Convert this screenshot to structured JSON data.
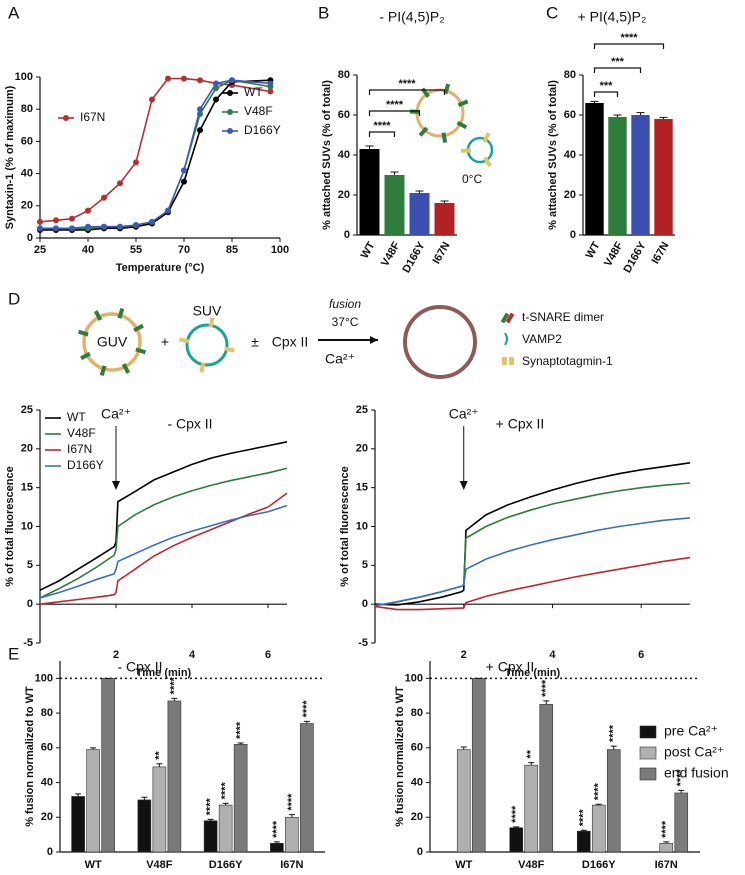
{
  "chart_data": [
    {
      "type": "line",
      "panel": "A",
      "xlabel": "Temperature (°C)",
      "ylabel": "Syntaxin-1 (% of maximum)",
      "x": [
        25,
        30,
        35,
        40,
        45,
        50,
        55,
        60,
        65,
        70,
        75,
        80,
        85,
        97
      ],
      "xlim": [
        25,
        100
      ],
      "xticks": [
        25,
        40,
        55,
        70,
        85,
        100
      ],
      "ylim": [
        0,
        100
      ],
      "yticks": [
        0,
        20,
        40,
        60,
        80,
        100
      ],
      "markers": true,
      "series": [
        {
          "name": "I67N",
          "color": "#b5302e",
          "values": [
            10,
            11,
            12,
            17,
            25,
            34,
            47,
            86,
            99,
            99,
            98,
            96,
            95,
            91
          ]
        },
        {
          "name": "WT",
          "color": "#000000",
          "values": [
            5,
            5,
            5,
            5,
            6,
            6,
            7,
            9,
            16,
            35,
            67,
            86,
            97,
            98
          ]
        },
        {
          "name": "V48F",
          "color": "#2e7d4f",
          "values": [
            6,
            6,
            6,
            6,
            7,
            7,
            8,
            10,
            17,
            42,
            77,
            93,
            98,
            94
          ]
        },
        {
          "name": "D166Y",
          "color": "#3b5bb5",
          "values": [
            6,
            6,
            6,
            7,
            7,
            7,
            8,
            10,
            17,
            42,
            80,
            96,
            98,
            96
          ]
        }
      ]
    },
    {
      "type": "bar",
      "panel": "B",
      "title": "- PI(4,5)P₂",
      "ylabel": "% attached SUVs (% of total)",
      "annotation": "0°C",
      "categories": [
        "WT",
        "V48F",
        "D166Y",
        "I67N"
      ],
      "values": [
        43,
        30,
        21,
        16
      ],
      "errors": [
        1.5,
        1.5,
        1,
        1
      ],
      "colors": [
        "#000000",
        "#2e7d3a",
        "#3a4fb0",
        "#b22222"
      ],
      "ylim": [
        0,
        80
      ],
      "yticks": [
        0,
        20,
        40,
        60,
        80
      ],
      "comparisons": [
        {
          "pair": [
            "WT",
            "V48F"
          ],
          "label": "****"
        },
        {
          "pair": [
            "WT",
            "D166Y"
          ],
          "label": "****"
        },
        {
          "pair": [
            "WT",
            "I67N"
          ],
          "label": "****"
        }
      ]
    },
    {
      "type": "bar",
      "panel": "C",
      "title": "+ PI(4,5)P₂",
      "ylabel": "% attached SUVs (% of total)",
      "categories": [
        "WT",
        "V48F",
        "D166Y",
        "I67N"
      ],
      "values": [
        66,
        59,
        60,
        58
      ],
      "errors": [
        0.8,
        1,
        1.2,
        0.8
      ],
      "colors": [
        "#000000",
        "#2e7d3a",
        "#3a4fb0",
        "#b22222"
      ],
      "ylim": [
        0,
        80
      ],
      "yticks": [
        0,
        20,
        40,
        60,
        80
      ],
      "comparisons": [
        {
          "pair": [
            "WT",
            "V48F"
          ],
          "label": "***"
        },
        {
          "pair": [
            "WT",
            "D166Y"
          ],
          "label": "***"
        },
        {
          "pair": [
            "WT",
            "I67N"
          ],
          "label": "****"
        }
      ]
    },
    {
      "type": "line",
      "title": "- Cpx II",
      "xlabel": "Time (min)",
      "ylabel": "% of total fluorescence",
      "annotation": {
        "text": "Ca²⁺",
        "x": 2
      },
      "x": [
        0,
        0.5,
        1,
        1.5,
        1.95,
        2,
        2.05,
        2.5,
        3,
        3.5,
        4,
        4.5,
        5,
        5.5,
        6,
        6.5
      ],
      "xlim": [
        0,
        6.5
      ],
      "xticks": [
        2,
        4,
        6
      ],
      "ylim": [
        -5,
        25
      ],
      "yticks": [
        -5,
        0,
        5,
        10,
        15,
        20,
        25
      ],
      "series": [
        {
          "name": "WT",
          "color": "#000000",
          "values": [
            1.8,
            3,
            4.5,
            6,
            7.4,
            8,
            13.2,
            14.5,
            16,
            17,
            18,
            18.8,
            19.4,
            19.9,
            20.4,
            20.9
          ]
        },
        {
          "name": "V48F",
          "color": "#2e7d3a",
          "values": [
            0.8,
            2,
            3.3,
            4.8,
            6.3,
            7,
            10,
            11.5,
            12.8,
            13.8,
            14.6,
            15.3,
            15.9,
            16.4,
            16.9,
            17.5
          ]
        },
        {
          "name": "I67N",
          "color": "#c0272d",
          "values": [
            0,
            0.3,
            0.6,
            0.9,
            1.2,
            1.5,
            3,
            4.5,
            6.2,
            7.5,
            8.6,
            9.6,
            10.6,
            11.6,
            12.5,
            14.3
          ]
        },
        {
          "name": "D166Y",
          "color": "#3a6fc0",
          "values": [
            0.8,
            1.5,
            2.3,
            3.2,
            3.9,
            4.5,
            5.5,
            6.5,
            7.6,
            8.6,
            9.4,
            10.1,
            10.8,
            11.4,
            11.9,
            12.7
          ]
        }
      ]
    },
    {
      "type": "line",
      "title": "+ Cpx II",
      "xlabel": "Time (min)",
      "ylabel": "% of total fluorescence",
      "annotation": {
        "text": "Ca²⁺",
        "x": 2
      },
      "x": [
        0,
        0.5,
        1,
        1.5,
        1.95,
        2,
        2.05,
        2.5,
        3,
        3.5,
        4,
        4.5,
        5,
        5.5,
        6,
        6.5,
        7.1
      ],
      "xlim": [
        0,
        7.1
      ],
      "xticks": [
        2,
        4,
        6
      ],
      "ylim": [
        -5,
        25
      ],
      "yticks": [
        -5,
        0,
        5,
        10,
        15,
        20,
        25
      ],
      "series": [
        {
          "color": "#000000",
          "values": [
            0,
            -0.1,
            0.3,
            0.9,
            1.6,
            1.8,
            9.5,
            11.5,
            12.8,
            13.8,
            14.7,
            15.5,
            16.2,
            16.8,
            17.3,
            17.7,
            18.2
          ]
        },
        {
          "color": "#2e7d3a",
          "values": [
            -0.2,
            0.3,
            0.9,
            1.6,
            2.3,
            2.5,
            8.5,
            10,
            11.2,
            12.1,
            12.9,
            13.5,
            14.1,
            14.6,
            15,
            15.3,
            15.6
          ]
        },
        {
          "color": "#3a6fc0",
          "values": [
            -0.2,
            0.3,
            0.9,
            1.6,
            2.3,
            2.5,
            4.5,
            5.8,
            6.8,
            7.6,
            8.3,
            8.9,
            9.5,
            10,
            10.4,
            10.8,
            11.1
          ]
        },
        {
          "color": "#c0272d",
          "values": [
            -0.3,
            -0.7,
            -0.7,
            -0.6,
            -0.5,
            -0.5,
            0.2,
            1,
            1.7,
            2.3,
            2.9,
            3.5,
            4,
            4.5,
            5,
            5.5,
            6
          ]
        }
      ]
    },
    {
      "type": "grouped_bar",
      "panel": "E",
      "title": "- Cpx II",
      "ylabel": "% fusion normalized to WT",
      "categories": [
        "WT",
        "V48F",
        "D166Y",
        "I67N"
      ],
      "ylim": [
        0,
        110
      ],
      "yticks": [
        0,
        20,
        40,
        60,
        80,
        100
      ],
      "reference_line": 100,
      "series": [
        {
          "color": "#111111",
          "values": [
            32,
            30,
            18,
            5
          ],
          "errors": [
            1.5,
            1.5,
            0.8,
            0.8
          ],
          "significance": [
            null,
            null,
            "****",
            "****"
          ]
        },
        {
          "color": "#b0b0b0",
          "values": [
            59,
            49,
            27,
            20
          ],
          "errors": [
            1,
            1.8,
            1,
            1.5
          ],
          "significance": [
            null,
            "**",
            "****",
            "****"
          ]
        },
        {
          "color": "#7a7a7a",
          "values": [
            100,
            87,
            62,
            74
          ],
          "errors": [
            0,
            1.5,
            0.8,
            1.2
          ],
          "significance": [
            null,
            "****",
            "****",
            "****"
          ]
        }
      ]
    },
    {
      "type": "grouped_bar",
      "title": "+ Cpx II",
      "ylabel": "% fusion normalized to WT",
      "categories": [
        "WT",
        "V48F",
        "D166Y",
        "I67N"
      ],
      "ylim": [
        0,
        110
      ],
      "yticks": [
        0,
        20,
        40,
        60,
        80,
        100
      ],
      "reference_line": 100,
      "series": [
        {
          "name": "pre Ca²⁺",
          "color": "#111111",
          "values": [
            0,
            14,
            12,
            0
          ],
          "errors": [
            0,
            0.5,
            0.5,
            0
          ],
          "significance": [
            null,
            "****",
            "****",
            null
          ]
        },
        {
          "name": "post Ca²⁺",
          "color": "#b0b0b0",
          "values": [
            59,
            50,
            27,
            5
          ],
          "errors": [
            1.5,
            1.5,
            0.5,
            0.8
          ],
          "significance": [
            null,
            "**",
            "****",
            "****"
          ]
        },
        {
          "name": "end fusion",
          "color": "#7a7a7a",
          "values": [
            100,
            85,
            59,
            34
          ],
          "errors": [
            0,
            2,
            2,
            1.5
          ],
          "significance": [
            null,
            "****",
            "****",
            "****"
          ]
        }
      ]
    }
  ],
  "diagram": {
    "panel": "D",
    "guv": "GUV",
    "suv": "SUV",
    "plus": "+",
    "plus_minus": "±",
    "complexin": "Cpx II",
    "fusion": "fusion",
    "temperature": "37°C",
    "calcium": "Ca²⁺",
    "legend": [
      "t-SNARE dimer",
      "VAMP2",
      "Synaptotagmin-1"
    ]
  }
}
